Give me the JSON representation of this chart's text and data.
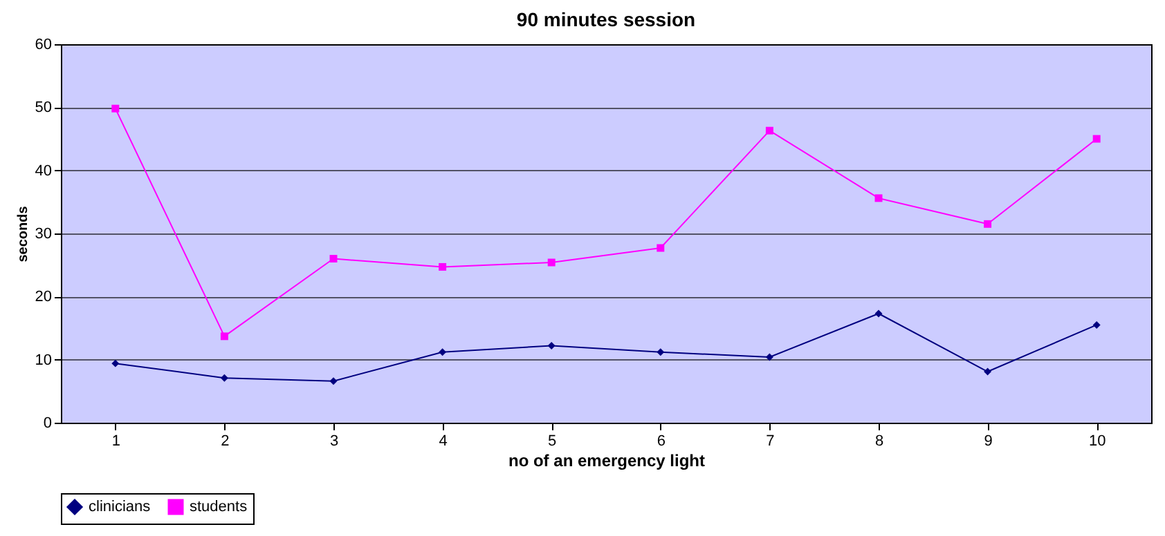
{
  "chart_data": {
    "type": "line",
    "title": "90 minutes session",
    "xlabel": "no of an emergency light",
    "ylabel": "seconds",
    "categories": [
      "1",
      "2",
      "3",
      "4",
      "5",
      "6",
      "7",
      "8",
      "9",
      "10"
    ],
    "series": [
      {
        "name": "clinicians",
        "color": "#000080",
        "marker": "diamond",
        "values": [
          9.4,
          7.1,
          6.6,
          11.2,
          12.2,
          11.2,
          10.4,
          17.3,
          8.1,
          15.5
        ]
      },
      {
        "name": "students",
        "color": "#ff00ff",
        "marker": "square",
        "values": [
          49.8,
          13.7,
          26.0,
          24.7,
          25.4,
          27.7,
          46.3,
          35.6,
          31.5,
          45.0
        ]
      }
    ],
    "ylim": [
      0,
      60
    ],
    "yticks": [
      0,
      10,
      20,
      30,
      40,
      50,
      60
    ],
    "grid": "y",
    "legend": "bottom",
    "line_style": "solid"
  }
}
